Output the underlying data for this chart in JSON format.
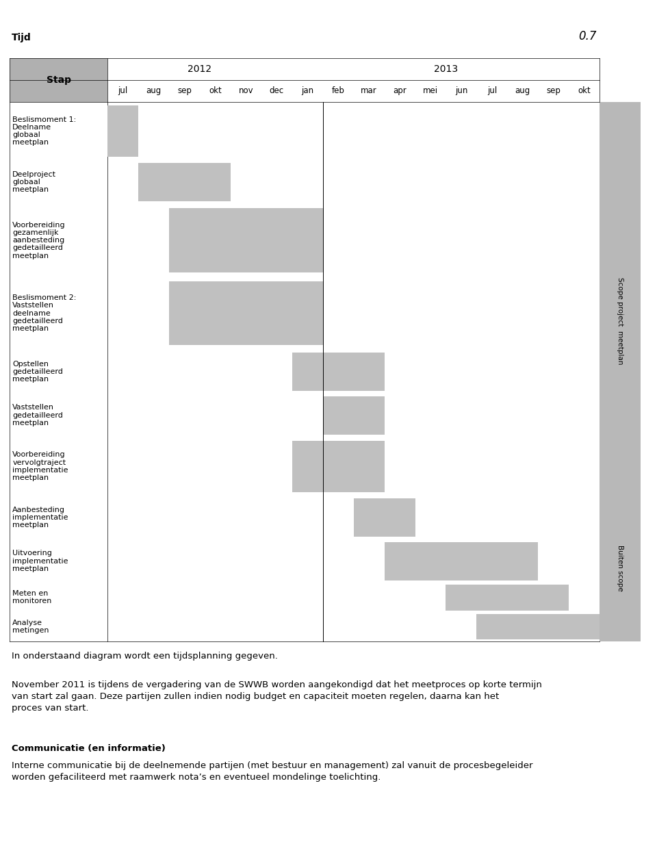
{
  "fig_width": 9.6,
  "fig_height": 12.49,
  "title_num": "0.7",
  "header_tijd": "Tijd",
  "header_stap": "Stap",
  "months": [
    "jul",
    "aug",
    "sep",
    "okt",
    "nov",
    "dec",
    "jan",
    "feb",
    "mar",
    "apr",
    "mei",
    "jun",
    "jul",
    "aug",
    "sep",
    "okt"
  ],
  "year_2012": "2012",
  "year_2013": "2013",
  "year_2012_span": [
    0,
    6
  ],
  "year_2013_span": [
    6,
    16
  ],
  "tasks": [
    {
      "label": "Beslismoment 1:\nDeelname\nglobaal\nmeetplan",
      "start": 0,
      "end": 1,
      "lines": 4
    },
    {
      "label": "Deelproject\nglobaal\nmeetplan",
      "start": 1,
      "end": 4,
      "lines": 3
    },
    {
      "label": "Voorbereiding\ngezamenlijk\naanbesteding\ngedetailleerd\nmeetplan",
      "start": 2,
      "end": 7,
      "lines": 5
    },
    {
      "label": "Beslismoment 2:\nVaststellen\ndeelname\ngedetailleerd\nmeetplan",
      "start": 2,
      "end": 7,
      "lines": 5
    },
    {
      "label": "Opstellen\ngedetailleerd\nmeetplan",
      "start": 6,
      "end": 9,
      "lines": 3
    },
    {
      "label": "Vaststellen\ngedetailleerd\nmeetplan",
      "start": 7,
      "end": 9,
      "lines": 3
    },
    {
      "label": "Voorbereiding\nvervolgtraject\nimplementatie\nmeetplan",
      "start": 6,
      "end": 9,
      "lines": 4
    },
    {
      "label": "Aanbesteding\nimplementatie\nmeetplan",
      "start": 8,
      "end": 10,
      "lines": 3
    },
    {
      "label": "Uitvoering\nimplementatie\nmeetplan",
      "start": 9,
      "end": 14,
      "lines": 3
    },
    {
      "label": "Meten en\nmonitoren",
      "start": 11,
      "end": 15,
      "lines": 2
    },
    {
      "label": "Analyse\nmetingen",
      "start": 12,
      "end": 16,
      "lines": 2
    }
  ],
  "vertical_line_col": 7,
  "scope1_task_range": [
    0,
    8
  ],
  "scope2_task_range": [
    7,
    11
  ],
  "scope1_label": "Scope project  meetplan",
  "scope2_label": "Buiten scope",
  "bar_color": "#c0c0c0",
  "header_bg": "#b0b0b0",
  "scope_bg": "#b8b8b8",
  "text_sections": [
    {
      "content": "In onderstaand diagram wordt een tijdsplanning gegeven.",
      "bold": false,
      "size": 9.5
    },
    {
      "content": "November 2011 is tijdens de vergadering van de SWWB worden aangekondigd dat het meetproces op korte termijn van start zal gaan. Deze partijen zullen indien nodig budget en capaciteit moeten regelen, daarna kan het proces van start.",
      "bold": false,
      "size": 9.5,
      "wrap": true
    },
    {
      "content": "Communicatie (en informatie)",
      "bold": true,
      "size": 9.5
    },
    {
      "content": "Interne communicatie bij de deelnemende partijen (met bestuur en management) zal vanuit de procesbegeleider worden gefaciliteerd met raamwerk nota’s en eventueel mondelinge toelichting.",
      "bold": false,
      "size": 9.5,
      "wrap": true
    }
  ]
}
